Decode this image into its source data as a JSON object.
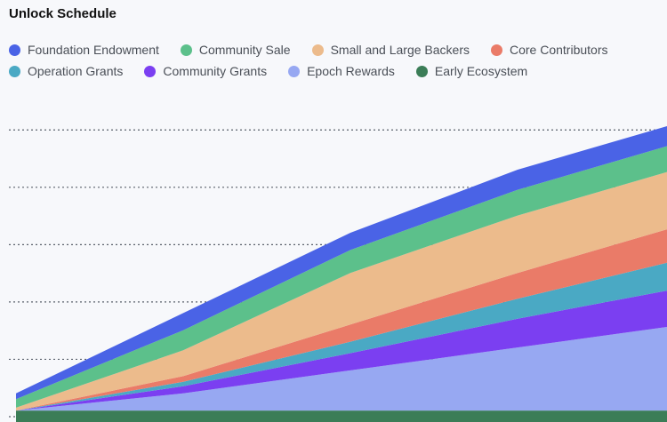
{
  "title": "Unlock Schedule",
  "legend_rows": [
    [
      0,
      1,
      2,
      3
    ],
    [
      4,
      5,
      6,
      7
    ]
  ],
  "chart_data": {
    "type": "area",
    "stacked": true,
    "title": "Unlock Schedule",
    "legend_placement": "top",
    "grid": true,
    "x_tick_labels_visible": false,
    "y_tick_labels_visible": false,
    "x": [
      0,
      1,
      2,
      3,
      4
    ],
    "ylim": [
      0,
      110
    ],
    "series": [
      {
        "name": "Early Ecosystem",
        "color": "#3b7d57",
        "values": [
          4,
          4,
          4,
          4,
          4
        ]
      },
      {
        "name": "Epoch Rewards",
        "color": "#97a8f2",
        "values": [
          0,
          6,
          14,
          22,
          30
        ]
      },
      {
        "name": "Community Grants",
        "color": "#7b3ff1",
        "values": [
          0,
          2.5,
          6,
          10,
          13
        ]
      },
      {
        "name": "Operation Grants",
        "color": "#4aa9c4",
        "values": [
          0,
          1.5,
          4,
          7,
          10
        ]
      },
      {
        "name": "Core Contributors",
        "color": "#ea7b68",
        "values": [
          0,
          2,
          6,
          9,
          12
        ]
      },
      {
        "name": "Small and Large Backers",
        "color": "#ecbb8c",
        "values": [
          1,
          9,
          18,
          20,
          20
        ]
      },
      {
        "name": "Community Sale",
        "color": "#5cc08b",
        "values": [
          3,
          7,
          8,
          9,
          9
        ]
      },
      {
        "name": "Foundation Endowment",
        "color": "#4a63e6",
        "values": [
          2,
          6,
          6,
          7,
          7
        ]
      }
    ]
  }
}
